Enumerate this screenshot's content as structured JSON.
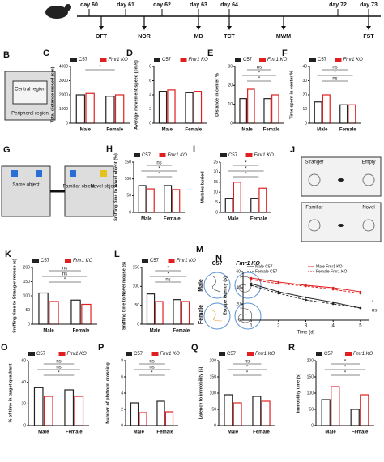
{
  "timeline": {
    "days": [
      "day 60",
      "day 61",
      "day 62",
      "day 63",
      "day 64",
      "day 72",
      "day 73"
    ],
    "tests": [
      "OFT",
      "NOR",
      "MB",
      "TCT",
      "MWM",
      "FST"
    ]
  },
  "diagrams": {
    "B": {
      "label": "B",
      "texts": [
        "Central region",
        "Peripheral region"
      ]
    },
    "G": {
      "label": "G",
      "texts": [
        "Same object",
        "Familiar object",
        "Novel object"
      ]
    },
    "J": {
      "label": "J",
      "texts": [
        "Stranger",
        "Empty",
        "Familiar",
        "Novel"
      ]
    },
    "M": {
      "label": "M",
      "columns": [
        "C57",
        "Fmr1 KO"
      ],
      "rows": [
        "Male",
        "Female"
      ]
    }
  },
  "chart_data": [
    {
      "type": "bar",
      "label": "C",
      "y_label": "Total distance moved (cm)",
      "categories": [
        "Male",
        "Female"
      ],
      "series": [
        {
          "name": "C57",
          "color": "#222222",
          "values": [
            2000,
            1900
          ]
        },
        {
          "name": "Fmr1 KO",
          "color": "#e02020",
          "values": [
            2100,
            2000
          ]
        }
      ],
      "ylim": [
        0,
        4000
      ],
      "yticks": [
        0,
        1000,
        2000,
        3000,
        4000
      ],
      "annotations": [
        "*"
      ]
    },
    {
      "type": "bar",
      "label": "D",
      "y_label": "Average movement speed (cm/s)",
      "categories": [
        "Male",
        "Female"
      ],
      "series": [
        {
          "name": "C57",
          "color": "#222222",
          "values": [
            4.5,
            4.3
          ]
        },
        {
          "name": "Fmr1 KO",
          "color": "#e02020",
          "values": [
            4.7,
            4.5
          ]
        }
      ],
      "ylim": [
        0,
        8
      ],
      "yticks": [
        0,
        2,
        4,
        6,
        8
      ],
      "annotations": []
    },
    {
      "type": "bar",
      "label": "E",
      "y_label": "Distance in center %",
      "categories": [
        "Male",
        "Female"
      ],
      "series": [
        {
          "name": "C57",
          "color": "#222222",
          "values": [
            13,
            13
          ]
        },
        {
          "name": "Fmr1 KO",
          "color": "#e02020",
          "values": [
            18,
            15
          ]
        }
      ],
      "ylim": [
        0,
        30
      ],
      "yticks": [
        0,
        10,
        20,
        30
      ],
      "annotations": [
        "ns",
        "*",
        "*"
      ]
    },
    {
      "type": "bar",
      "label": "F",
      "y_label": "Time spent in center %",
      "categories": [
        "Male",
        "Female"
      ],
      "series": [
        {
          "name": "C57",
          "color": "#222222",
          "values": [
            15,
            13
          ]
        },
        {
          "name": "Fmr1 KO",
          "color": "#e02020",
          "values": [
            20,
            13
          ]
        }
      ],
      "ylim": [
        0,
        40
      ],
      "yticks": [
        0,
        10,
        20,
        30,
        40
      ],
      "annotations": [
        "ns",
        "*",
        "ns"
      ]
    },
    {
      "type": "bar",
      "label": "H",
      "y_label": "Sniffing time to novel object (%)",
      "categories": [
        "Male",
        "Female"
      ],
      "series": [
        {
          "name": "C57",
          "color": "#222222",
          "values": [
            80,
            80
          ]
        },
        {
          "name": "Fmr1 KO",
          "color": "#e02020",
          "values": [
            70,
            68
          ]
        }
      ],
      "ylim": [
        0,
        150
      ],
      "yticks": [
        0,
        50,
        100,
        150
      ],
      "annotations": [
        "ns",
        "*",
        "*"
      ]
    },
    {
      "type": "bar",
      "label": "I",
      "y_label": "Marbles buried",
      "categories": [
        "Male",
        "Female"
      ],
      "series": [
        {
          "name": "C57",
          "color": "#222222",
          "values": [
            7,
            7
          ]
        },
        {
          "name": "Fmr1 KO",
          "color": "#e02020",
          "values": [
            15,
            12
          ]
        }
      ],
      "ylim": [
        0,
        25
      ],
      "yticks": [
        0,
        5,
        10,
        15,
        20,
        25
      ],
      "annotations": [
        "*",
        "*",
        "*"
      ]
    },
    {
      "type": "bar",
      "label": "K",
      "y_label": "Sniffing time to Stranger mouse (s)",
      "categories": [
        "Male",
        "Female"
      ],
      "series": [
        {
          "name": "C57",
          "color": "#222222",
          "values": [
            110,
            85
          ]
        },
        {
          "name": "Fmr1 KO",
          "color": "#e02020",
          "values": [
            80,
            70
          ]
        }
      ],
      "ylim": [
        0,
        200
      ],
      "yticks": [
        0,
        50,
        100,
        150,
        200
      ],
      "annotations": [
        "ns",
        "ns",
        "*"
      ]
    },
    {
      "type": "bar",
      "label": "L",
      "y_label": "Sniffing time to Novel mouse (s)",
      "categories": [
        "Male",
        "Female"
      ],
      "series": [
        {
          "name": "C57",
          "color": "#222222",
          "values": [
            80,
            65
          ]
        },
        {
          "name": "Fmr1 KO",
          "color": "#e02020",
          "values": [
            60,
            60
          ]
        }
      ],
      "ylim": [
        0,
        150
      ],
      "yticks": [
        0,
        50,
        100,
        150
      ],
      "annotations": [
        "*",
        "*",
        "ns"
      ]
    },
    {
      "type": "line",
      "label": "N",
      "x_label": "Time (d)",
      "y_label": "Escape latency (s)",
      "x": [
        1,
        2,
        3,
        4,
        5
      ],
      "series": [
        {
          "name": "Male C57",
          "color": "#222222",
          "dashed": false,
          "values": [
            45,
            35,
            28,
            22,
            15
          ]
        },
        {
          "name": "Female C57",
          "color": "#222222",
          "dashed": true,
          "values": [
            43,
            33,
            25,
            20,
            15
          ]
        },
        {
          "name": "Male Fmr1 KO",
          "color": "#e02020",
          "dashed": false,
          "values": [
            52,
            47,
            43,
            40,
            35
          ]
        },
        {
          "name": "Female Fmr1 KO",
          "color": "#e02020",
          "dashed": true,
          "values": [
            50,
            45,
            42,
            38,
            33
          ]
        }
      ],
      "xlim": [
        0.7,
        5.3
      ],
      "xticks": [
        1,
        2,
        3,
        4,
        5
      ],
      "ylim": [
        0,
        60
      ],
      "yticks": [
        0,
        20,
        40,
        60
      ],
      "annotations": [
        "*",
        "ns"
      ]
    },
    {
      "type": "bar",
      "label": "O",
      "y_label": "% of time in target quadrant",
      "categories": [
        "Male",
        "Female"
      ],
      "series": [
        {
          "name": "C57",
          "color": "#222222",
          "values": [
            35,
            33
          ]
        },
        {
          "name": "Fmr1 KO",
          "color": "#e02020",
          "values": [
            27,
            27
          ]
        }
      ],
      "ylim": [
        0,
        60
      ],
      "yticks": [
        0,
        20,
        40,
        60
      ],
      "annotations": [
        "ns",
        "ns",
        "*"
      ]
    },
    {
      "type": "bar",
      "label": "P",
      "y_label": "Number of platform crossing",
      "categories": [
        "Male",
        "Female"
      ],
      "series": [
        {
          "name": "C57",
          "color": "#222222",
          "values": [
            2.8,
            3
          ]
        },
        {
          "name": "Fmr1 KO",
          "color": "#e02020",
          "values": [
            1.6,
            1.7
          ]
        }
      ],
      "ylim": [
        0,
        8
      ],
      "yticks": [
        0,
        2,
        4,
        6,
        8
      ],
      "annotations": [
        "ns",
        "ns",
        "*"
      ]
    },
    {
      "type": "bar",
      "label": "Q",
      "y_label": "Latency to immobility (s)",
      "categories": [
        "Male",
        "Female"
      ],
      "series": [
        {
          "name": "C57",
          "color": "#222222",
          "values": [
            95,
            90
          ]
        },
        {
          "name": "Fmr1 KO",
          "color": "#e02020",
          "values": [
            70,
            75
          ]
        }
      ],
      "ylim": [
        0,
        200
      ],
      "yticks": [
        0,
        50,
        100,
        150,
        200
      ],
      "annotations": [
        "ns",
        "*",
        "*"
      ]
    },
    {
      "type": "bar",
      "label": "R",
      "y_label": "Immobility time (s)",
      "categories": [
        "Male",
        "Female"
      ],
      "series": [
        {
          "name": "C57",
          "color": "#222222",
          "values": [
            80,
            50
          ]
        },
        {
          "name": "Fmr1 KO",
          "color": "#e02020",
          "values": [
            120,
            95
          ]
        }
      ],
      "ylim": [
        0,
        200
      ],
      "yticks": [
        0,
        50,
        100,
        150,
        200
      ],
      "annotations": [
        "*",
        "*",
        "*"
      ]
    }
  ]
}
